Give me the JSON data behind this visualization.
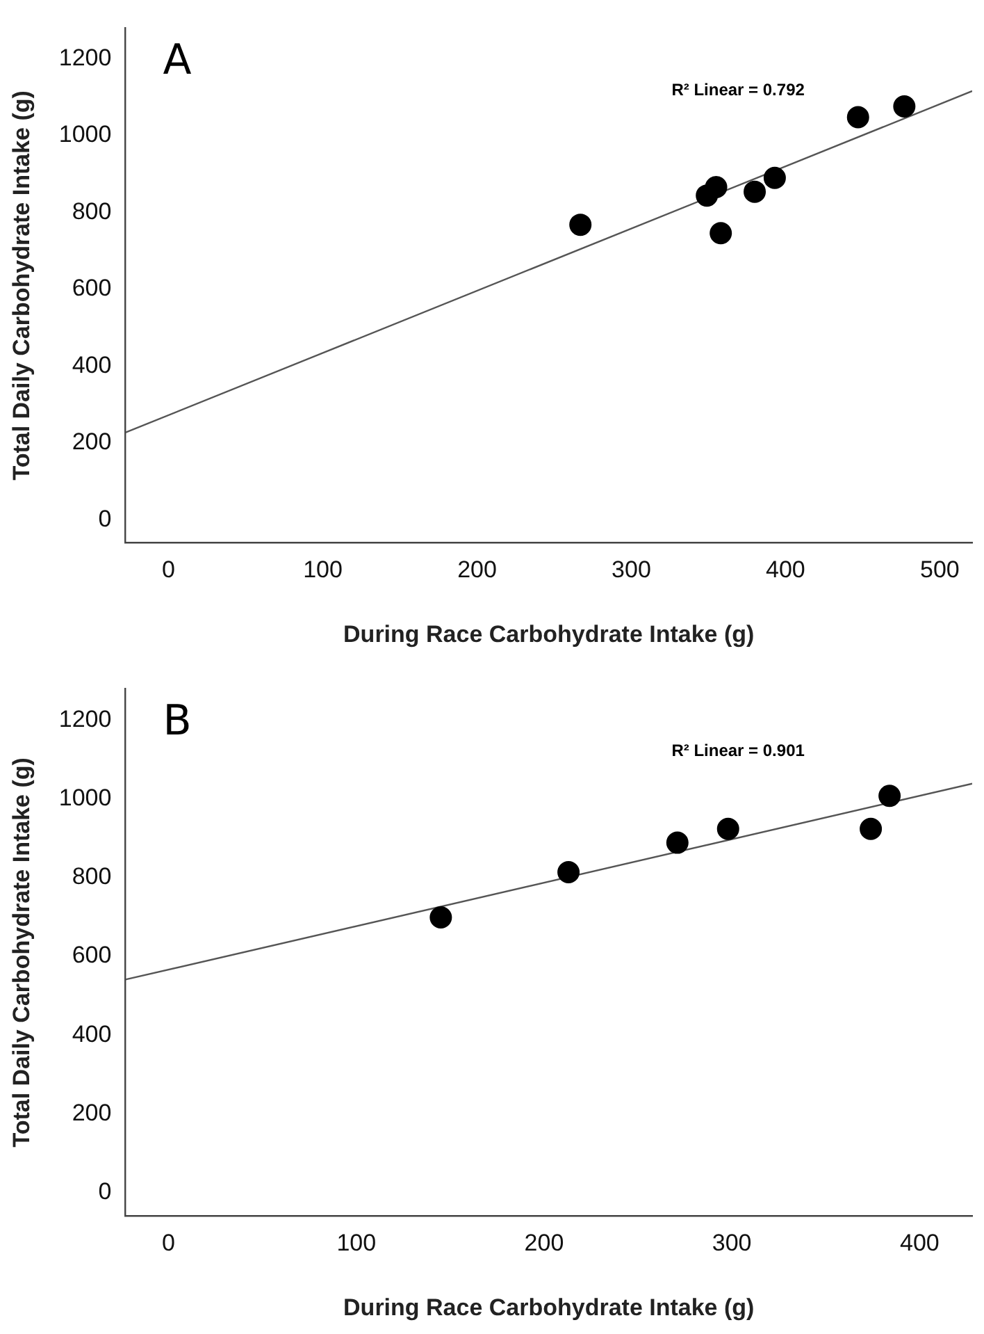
{
  "chart_data": [
    {
      "type": "scatter",
      "title": "A",
      "xlabel": "During Race Carbohydrate Intake (g)",
      "ylabel": "Total Daily Carbohydrate Intake (g)",
      "annotations": [
        "R² Linear = 0.792"
      ],
      "xlim": [
        -28,
        521
      ],
      "xticks": [
        0,
        100,
        200,
        300,
        400,
        500
      ],
      "ylim": [
        -60,
        1280
      ],
      "yticks": [
        0,
        200,
        400,
        600,
        800,
        1000,
        1200
      ],
      "grid": false,
      "legend": false,
      "marker": "circle",
      "series": [
        {
          "color": "#000000",
          "x": [
            267,
            349,
            355,
            358,
            380,
            393,
            447,
            477
          ],
          "values": [
            768,
            844,
            866,
            746,
            854,
            890,
            1048,
            1076
          ]
        },
        {
          "type": "line",
          "color": "#555555",
          "marker": "none",
          "x": [
            -28,
            521
          ],
          "values": [
            227,
            1116
          ]
        }
      ]
    },
    {
      "type": "scatter",
      "title": "B",
      "xlabel": "During Race Carbohydrate Intake (g)",
      "ylabel": "Total Daily Carbohydrate Intake (g)",
      "annotations": [
        "R² Linear = 0.901"
      ],
      "xlim": [
        -23,
        428
      ],
      "xticks": [
        0,
        100,
        200,
        300,
        400
      ],
      "ylim": [
        -60,
        1280
      ],
      "yticks": [
        0,
        200,
        400,
        600,
        800,
        1000,
        1200
      ],
      "grid": false,
      "legend": false,
      "marker": "circle",
      "series": [
        {
          "color": "#000000",
          "x": [
            145,
            213,
            271,
            298,
            374,
            384
          ],
          "values": [
            699,
            814,
            889,
            924,
            924,
            1008
          ]
        },
        {
          "type": "line",
          "color": "#555555",
          "marker": "none",
          "x": [
            -23,
            428
          ],
          "values": [
            541,
            1039
          ]
        }
      ]
    }
  ]
}
